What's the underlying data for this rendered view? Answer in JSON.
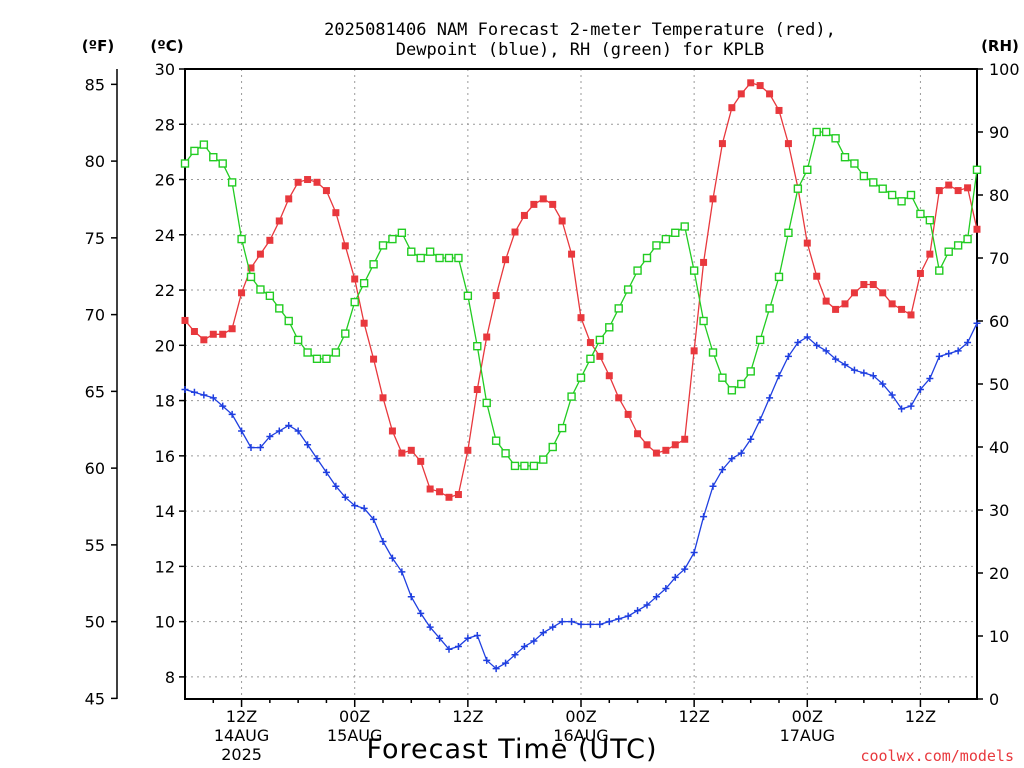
{
  "chart_data": {
    "type": "line",
    "title": "2025081406 NAM Forecast 2-meter Temperature (red),",
    "subtitle": "Dewpoint (blue), RH (green) for KPLB",
    "xlabel": "Forecast Time (UTC)",
    "credit": "coolwx.com/models",
    "left_unit_f": "(ºF)",
    "left_unit_c": "(ºC)",
    "right_unit": "(RH)",
    "x_hours_start": 0,
    "x_hours_end": 84,
    "x_ticks": [
      {
        "hour": 6,
        "line1": "12Z",
        "line2": "14AUG",
        "line3": "2025"
      },
      {
        "hour": 18,
        "line1": "00Z",
        "line2": "15AUG",
        "line3": ""
      },
      {
        "hour": 30,
        "line1": "12Z",
        "line2": "",
        "line3": ""
      },
      {
        "hour": 42,
        "line1": "00Z",
        "line2": "16AUG",
        "line3": ""
      },
      {
        "hour": 54,
        "line1": "12Z",
        "line2": "",
        "line3": ""
      },
      {
        "hour": 66,
        "line1": "00Z",
        "line2": "17AUG",
        "line3": ""
      },
      {
        "hour": 78,
        "line1": "12Z",
        "line2": "",
        "line3": ""
      }
    ],
    "y_celsius": {
      "range": [
        7.2,
        30
      ],
      "ticks": [
        8,
        10,
        12,
        14,
        16,
        18,
        20,
        22,
        24,
        26,
        28,
        30
      ]
    },
    "y_fahrenheit": {
      "ticks": [
        45,
        50,
        55,
        60,
        65,
        70,
        75,
        80,
        85
      ]
    },
    "y_rh": {
      "range": [
        0,
        100
      ],
      "ticks": [
        0,
        10,
        20,
        30,
        40,
        50,
        60,
        70,
        80,
        90,
        100
      ]
    },
    "series": [
      {
        "name": "2-meter Temperature",
        "color": "#e8383d",
        "marker": "filled-square",
        "axis": "celsius",
        "x": [
          0,
          1,
          2,
          3,
          4,
          5,
          6,
          7,
          8,
          9,
          10,
          11,
          12,
          13,
          14,
          15,
          16,
          17,
          18,
          19,
          20,
          21,
          22,
          23,
          24,
          25,
          26,
          27,
          28,
          29,
          30,
          31,
          32,
          33,
          34,
          35,
          36,
          37,
          38,
          39,
          40,
          41,
          42,
          43,
          44,
          45,
          46,
          47,
          48,
          49,
          50,
          51,
          52,
          53,
          54,
          55,
          56,
          57,
          58,
          59,
          60,
          61,
          62,
          63,
          64,
          65,
          66,
          67,
          68,
          69,
          70,
          71,
          72,
          73,
          74,
          75,
          76,
          77,
          78,
          79,
          80,
          81,
          82,
          83,
          84
        ],
        "values": [
          20.9,
          20.5,
          20.2,
          20.4,
          20.4,
          20.6,
          21.9,
          22.8,
          23.3,
          23.8,
          24.5,
          25.3,
          25.9,
          26.0,
          25.9,
          25.6,
          24.8,
          23.6,
          22.4,
          20.8,
          19.5,
          18.1,
          16.9,
          16.1,
          16.2,
          15.8,
          14.8,
          14.7,
          14.5,
          14.6,
          16.2,
          18.4,
          20.3,
          21.8,
          23.1,
          24.1,
          24.7,
          25.1,
          25.3,
          25.1,
          24.5,
          23.3,
          21.0,
          20.1,
          19.6,
          18.9,
          18.1,
          17.5,
          16.8,
          16.4,
          16.1,
          16.2,
          16.4,
          16.6,
          19.8,
          23.0,
          25.3,
          27.3,
          28.6,
          29.1,
          29.5,
          29.4,
          29.1,
          28.5,
          27.3,
          25.7,
          23.7,
          22.5,
          21.6,
          21.3,
          21.5,
          21.9,
          22.2,
          22.2,
          21.9,
          21.5,
          21.3,
          21.1,
          22.6,
          23.3,
          25.6,
          25.8,
          25.6,
          25.7,
          24.2
        ]
      },
      {
        "name": "Dewpoint",
        "color": "#1f3fe0",
        "marker": "plus",
        "axis": "celsius",
        "x": [
          0,
          1,
          2,
          3,
          4,
          5,
          6,
          7,
          8,
          9,
          10,
          11,
          12,
          13,
          14,
          15,
          16,
          17,
          18,
          19,
          20,
          21,
          22,
          23,
          24,
          25,
          26,
          27,
          28,
          29,
          30,
          31,
          32,
          33,
          34,
          35,
          36,
          37,
          38,
          39,
          40,
          41,
          42,
          43,
          44,
          45,
          46,
          47,
          48,
          49,
          50,
          51,
          52,
          53,
          54,
          55,
          56,
          57,
          58,
          59,
          60,
          61,
          62,
          63,
          64,
          65,
          66,
          67,
          68,
          69,
          70,
          71,
          72,
          73,
          74,
          75,
          76,
          77,
          78,
          79,
          80,
          81,
          82,
          83,
          84
        ],
        "values": [
          18.4,
          18.3,
          18.2,
          18.1,
          17.8,
          17.5,
          16.9,
          16.3,
          16.3,
          16.7,
          16.9,
          17.1,
          16.9,
          16.4,
          15.9,
          15.4,
          14.9,
          14.5,
          14.2,
          14.1,
          13.7,
          12.9,
          12.3,
          11.8,
          10.9,
          10.3,
          9.8,
          9.4,
          9.0,
          9.1,
          9.4,
          9.5,
          8.6,
          8.3,
          8.5,
          8.8,
          9.1,
          9.3,
          9.6,
          9.8,
          10.0,
          10.0,
          9.9,
          9.9,
          9.9,
          10.0,
          10.1,
          10.2,
          10.4,
          10.6,
          10.9,
          11.2,
          11.6,
          11.9,
          12.5,
          13.8,
          14.9,
          15.5,
          15.9,
          16.1,
          16.6,
          17.3,
          18.1,
          18.9,
          19.6,
          20.1,
          20.3,
          20.0,
          19.8,
          19.5,
          19.3,
          19.1,
          19.0,
          18.9,
          18.6,
          18.2,
          17.7,
          17.8,
          18.4,
          18.8,
          19.6,
          19.7,
          19.8,
          20.1,
          20.8
        ]
      },
      {
        "name": "RH",
        "color": "#22cc22",
        "marker": "open-square",
        "axis": "rh",
        "x": [
          0,
          1,
          2,
          3,
          4,
          5,
          6,
          7,
          8,
          9,
          10,
          11,
          12,
          13,
          14,
          15,
          16,
          17,
          18,
          19,
          20,
          21,
          22,
          23,
          24,
          25,
          26,
          27,
          28,
          29,
          30,
          31,
          32,
          33,
          34,
          35,
          36,
          37,
          38,
          39,
          40,
          41,
          42,
          43,
          44,
          45,
          46,
          47,
          48,
          49,
          50,
          51,
          52,
          53,
          54,
          55,
          56,
          57,
          58,
          59,
          60,
          61,
          62,
          63,
          64,
          65,
          66,
          67,
          68,
          69,
          70,
          71,
          72,
          73,
          74,
          75,
          76,
          77,
          78,
          79,
          80,
          81,
          82,
          83,
          84
        ],
        "values": [
          85,
          87,
          88,
          86,
          85,
          82,
          73,
          67,
          65,
          64,
          62,
          60,
          57,
          55,
          54,
          54,
          55,
          58,
          63,
          66,
          69,
          72,
          73,
          74,
          71,
          70,
          71,
          70,
          70,
          70,
          64,
          56,
          47,
          41,
          39,
          37,
          37,
          37,
          38,
          40,
          43,
          48,
          51,
          54,
          57,
          59,
          62,
          65,
          68,
          70,
          72,
          73,
          74,
          75,
          68,
          60,
          55,
          51,
          49,
          50,
          52,
          57,
          62,
          67,
          74,
          81,
          84,
          90,
          90,
          89,
          86,
          85,
          83,
          82,
          81,
          80,
          79,
          80,
          77,
          76,
          68,
          71,
          72,
          73,
          84
        ]
      }
    ]
  }
}
